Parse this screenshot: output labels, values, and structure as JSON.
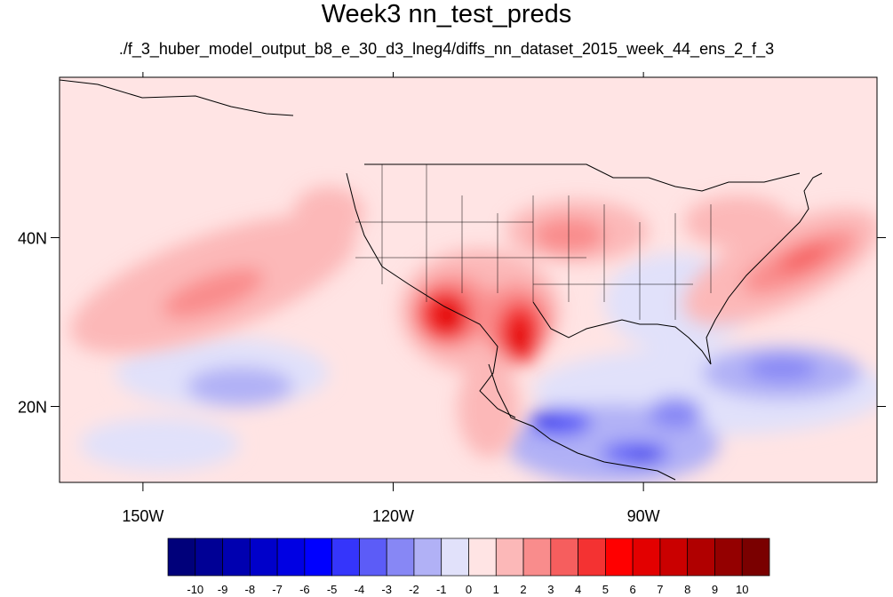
{
  "map": {
    "title": "Week3 nn_test_preds",
    "subtitle": "./f_3_huber_model_output_b8_e_30_d3_lneg4/diffs_nn_dataset_2015_week_44_ens_2_f_3",
    "lon_range": [
      -160,
      -62
    ],
    "lat_range": [
      11,
      59
    ],
    "lon_ticks": [
      "150W",
      "120W",
      "90W"
    ],
    "lat_ticks": [
      "40N",
      "20N"
    ]
  },
  "colorbar": {
    "labels": [
      "-10",
      "-9",
      "-8",
      "-7",
      "-6",
      "-5",
      "-4",
      "-3",
      "-2",
      "-1",
      "0",
      "1",
      "2",
      "3",
      "4",
      "5",
      "6",
      "7",
      "8",
      "9",
      "10"
    ],
    "colors": [
      "#00007a",
      "#000095",
      "#0000b0",
      "#0000ca",
      "#0000e3",
      "#0000ff",
      "#3535fb",
      "#5c5cf7",
      "#8787f5",
      "#b1b1f6",
      "#e1e1fa",
      "#ffe4e4",
      "#fcb8b8",
      "#f98c8c",
      "#f65e5e",
      "#f43232",
      "#ff0000",
      "#e30000",
      "#ca0000",
      "#b00000",
      "#940000",
      "#7a0000"
    ]
  }
}
